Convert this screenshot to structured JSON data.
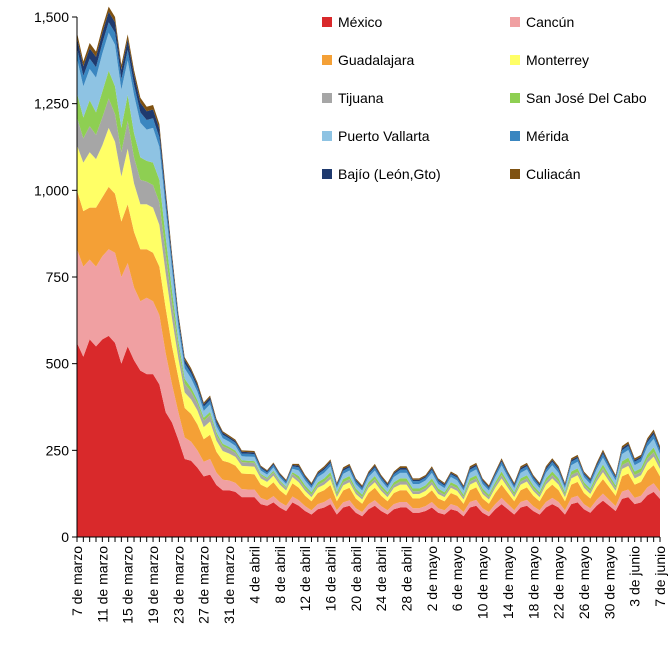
{
  "chart_data": {
    "type": "stacked_area",
    "categories": [
      "7 de marzo",
      null,
      null,
      null,
      "11 de marzo",
      null,
      null,
      null,
      "15 de marzo",
      null,
      null,
      null,
      "19 de marzo",
      null,
      null,
      null,
      "23 de marzo",
      null,
      null,
      null,
      "27 de marzo",
      null,
      null,
      null,
      "31 de marzo",
      null,
      null,
      null,
      "4 de abril",
      null,
      null,
      null,
      "8 de abril",
      null,
      null,
      null,
      "12 de abril",
      null,
      null,
      null,
      "16 de abril",
      null,
      null,
      null,
      "20 de abril",
      null,
      null,
      null,
      "24 de abril",
      null,
      null,
      null,
      "28 de abril",
      null,
      null,
      null,
      "2 de mayo",
      null,
      null,
      null,
      "6 de mayo",
      null,
      null,
      null,
      "10 de mayo",
      null,
      null,
      null,
      "14 de mayo",
      null,
      null,
      null,
      "18 de mayo",
      null,
      null,
      null,
      "22 de mayo",
      null,
      null,
      null,
      "26 de mayo",
      null,
      null,
      null,
      "30 de mayo",
      null,
      null,
      null,
      "3 de junio",
      null,
      null,
      null,
      "7 de junio"
    ],
    "ylim": [
      0,
      1500
    ],
    "yticks": [
      0,
      250,
      500,
      750,
      {
        "value": 1000,
        "label": "1,000"
      },
      {
        "value": 1250,
        "label": "1,250"
      },
      {
        "value": 1500,
        "label": "1,500"
      }
    ],
    "legend": "top-right",
    "series": [
      {
        "name": "México",
        "color": "#d9292b",
        "values": [
          560,
          520,
          570,
          550,
          570,
          580,
          560,
          500,
          550,
          510,
          480,
          470,
          470,
          440,
          360,
          330,
          280,
          225,
          220,
          200,
          175,
          180,
          150,
          135,
          135,
          130,
          115,
          115,
          115,
          95,
          90,
          100,
          85,
          75,
          100,
          90,
          75,
          65,
          80,
          85,
          95,
          65,
          85,
          90,
          70,
          60,
          80,
          90,
          75,
          65,
          80,
          85,
          85,
          70,
          70,
          75,
          85,
          70,
          65,
          80,
          75,
          60,
          85,
          90,
          70,
          60,
          80,
          95,
          80,
          65,
          85,
          90,
          75,
          65,
          85,
          95,
          85,
          65,
          95,
          100,
          80,
          70,
          90,
          105,
          90,
          75,
          110,
          115,
          95,
          100,
          120,
          130,
          110
        ]
      },
      {
        "name": "Cancún",
        "color": "#f0a0a2",
        "values": [
          270,
          260,
          230,
          230,
          240,
          250,
          260,
          250,
          240,
          210,
          200,
          220,
          210,
          200,
          170,
          110,
          80,
          62,
          55,
          50,
          42,
          45,
          36,
          30,
          28,
          26,
          23,
          22,
          22,
          18,
          16,
          18,
          16,
          15,
          17,
          16,
          14,
          12,
          15,
          16,
          17,
          12,
          15,
          16,
          13,
          12,
          15,
          16,
          14,
          12,
          15,
          16,
          16,
          13,
          13,
          14,
          16,
          13,
          12,
          15,
          14,
          12,
          16,
          17,
          13,
          12,
          15,
          18,
          15,
          12,
          16,
          17,
          14,
          12,
          16,
          18,
          16,
          12,
          18,
          19,
          15,
          13,
          17,
          20,
          17,
          14,
          21,
          22,
          18,
          19,
          23,
          25,
          21
        ]
      },
      {
        "name": "Guadalajara",
        "color": "#f4a036",
        "values": [
          170,
          160,
          150,
          170,
          170,
          180,
          170,
          160,
          170,
          160,
          150,
          140,
          140,
          140,
          130,
          110,
          100,
          85,
          80,
          75,
          65,
          70,
          60,
          55,
          52,
          50,
          45,
          45,
          44,
          38,
          36,
          40,
          34,
          30,
          38,
          36,
          30,
          26,
          32,
          34,
          38,
          26,
          34,
          36,
          28,
          24,
          32,
          36,
          30,
          26,
          32,
          34,
          34,
          28,
          28,
          30,
          34,
          28,
          26,
          32,
          30,
          24,
          34,
          36,
          28,
          24,
          32,
          38,
          32,
          26,
          34,
          36,
          30,
          26,
          34,
          38,
          34,
          26,
          38,
          40,
          32,
          28,
          36,
          42,
          36,
          30,
          44,
          46,
          38,
          40,
          48,
          52,
          44
        ]
      },
      {
        "name": "Monterrey",
        "color": "#ffff66",
        "values": [
          130,
          140,
          160,
          140,
          150,
          170,
          150,
          130,
          160,
          140,
          130,
          130,
          130,
          120,
          100,
          80,
          55,
          45,
          42,
          40,
          35,
          38,
          32,
          28,
          26,
          25,
          22,
          22,
          22,
          18,
          17,
          19,
          16,
          14,
          18,
          16,
          14,
          12,
          15,
          16,
          17,
          12,
          15,
          16,
          13,
          12,
          15,
          16,
          14,
          12,
          15,
          16,
          16,
          13,
          13,
          14,
          16,
          13,
          12,
          15,
          14,
          12,
          16,
          17,
          13,
          12,
          15,
          18,
          15,
          12,
          16,
          17,
          14,
          12,
          16,
          18,
          16,
          12,
          18,
          19,
          15,
          13,
          17,
          20,
          17,
          14,
          21,
          22,
          18,
          19,
          23,
          25,
          21
        ]
      },
      {
        "name": "Tijuana",
        "color": "#a6a6a6",
        "values": [
          80,
          70,
          75,
          70,
          80,
          85,
          80,
          70,
          80,
          75,
          70,
          65,
          65,
          65,
          55,
          45,
          30,
          25,
          22,
          20,
          18,
          19,
          16,
          14,
          13,
          12,
          11,
          11,
          11,
          9,
          8,
          9,
          8,
          7,
          9,
          9,
          8,
          7,
          8,
          9,
          10,
          7,
          9,
          9,
          8,
          7,
          8,
          9,
          8,
          7,
          8,
          9,
          9,
          8,
          8,
          8,
          9,
          8,
          7,
          8,
          8,
          7,
          9,
          9,
          8,
          7,
          8,
          10,
          8,
          7,
          9,
          9,
          8,
          7,
          9,
          10,
          9,
          7,
          10,
          10,
          8,
          8,
          9,
          11,
          9,
          8,
          11,
          12,
          10,
          10,
          12,
          13,
          11
        ]
      },
      {
        "name": "San José Del Cabo",
        "color": "#8ecf52",
        "values": [
          70,
          60,
          75,
          65,
          75,
          80,
          80,
          70,
          75,
          70,
          65,
          60,
          65,
          65,
          50,
          35,
          20,
          14,
          12,
          10,
          9,
          9,
          8,
          7,
          6,
          6,
          5,
          5,
          5,
          4,
          4,
          5,
          4,
          4,
          5,
          9,
          8,
          7,
          8,
          9,
          10,
          7,
          9,
          9,
          8,
          7,
          8,
          9,
          8,
          7,
          8,
          9,
          9,
          8,
          8,
          8,
          9,
          8,
          7,
          8,
          8,
          7,
          9,
          9,
          8,
          7,
          8,
          10,
          8,
          7,
          9,
          9,
          8,
          7,
          9,
          10,
          9,
          7,
          10,
          10,
          8,
          8,
          9,
          11,
          9,
          8,
          11,
          12,
          10,
          10,
          12,
          13,
          11
        ]
      },
      {
        "name": "Puerto Vallarta",
        "color": "#8ec3e3",
        "values": [
          100,
          90,
          90,
          100,
          110,
          110,
          120,
          110,
          100,
          110,
          100,
          90,
          100,
          95,
          80,
          60,
          40,
          30,
          27,
          24,
          20,
          22,
          18,
          16,
          15,
          14,
          12,
          12,
          12,
          10,
          9,
          10,
          9,
          8,
          10,
          16,
          14,
          12,
          15,
          16,
          17,
          12,
          15,
          16,
          13,
          12,
          15,
          16,
          14,
          12,
          15,
          16,
          16,
          13,
          13,
          14,
          16,
          13,
          12,
          15,
          14,
          12,
          16,
          17,
          13,
          12,
          15,
          18,
          15,
          12,
          16,
          17,
          14,
          12,
          16,
          18,
          16,
          12,
          18,
          19,
          15,
          13,
          17,
          20,
          17,
          14,
          21,
          22,
          18,
          19,
          23,
          25,
          21
        ]
      },
      {
        "name": "Mérida",
        "color": "#3a86c0",
        "values": [
          30,
          30,
          30,
          30,
          30,
          30,
          35,
          30,
          30,
          30,
          30,
          28,
          28,
          28,
          25,
          22,
          20,
          15,
          14,
          13,
          12,
          12,
          10,
          10,
          9,
          9,
          8,
          8,
          8,
          7,
          6,
          7,
          6,
          6,
          7,
          9,
          8,
          7,
          8,
          9,
          10,
          7,
          9,
          9,
          8,
          7,
          8,
          9,
          8,
          7,
          8,
          9,
          9,
          8,
          8,
          8,
          9,
          8,
          7,
          8,
          8,
          7,
          9,
          9,
          8,
          7,
          8,
          10,
          8,
          7,
          9,
          9,
          8,
          7,
          9,
          10,
          9,
          7,
          10,
          10,
          8,
          8,
          9,
          11,
          9,
          8,
          11,
          12,
          10,
          10,
          12,
          13,
          11
        ]
      },
      {
        "name": "Bajío (León,Gto)",
        "color": "#1f3a6e",
        "values": [
          30,
          28,
          30,
          30,
          30,
          30,
          30,
          28,
          30,
          28,
          28,
          25,
          25,
          25,
          20,
          15,
          12,
          10,
          9,
          8,
          7,
          8,
          6,
          6,
          5,
          5,
          5,
          5,
          5,
          4,
          4,
          4,
          4,
          3,
          4,
          5,
          4,
          4,
          4,
          5,
          5,
          4,
          5,
          5,
          4,
          4,
          4,
          5,
          4,
          4,
          4,
          5,
          5,
          4,
          4,
          4,
          5,
          4,
          4,
          4,
          4,
          4,
          5,
          5,
          4,
          4,
          4,
          5,
          4,
          4,
          5,
          5,
          4,
          4,
          5,
          5,
          5,
          4,
          5,
          5,
          4,
          4,
          5,
          6,
          5,
          4,
          6,
          6,
          5,
          5,
          6,
          7,
          6
        ]
      },
      {
        "name": "Culiacán",
        "color": "#7f5212",
        "values": [
          15,
          14,
          15,
          15,
          15,
          15,
          15,
          14,
          15,
          14,
          14,
          13,
          13,
          13,
          12,
          10,
          8,
          7,
          6,
          6,
          5,
          5,
          5,
          4,
          4,
          4,
          4,
          4,
          4,
          3,
          3,
          3,
          3,
          3,
          3,
          5,
          4,
          4,
          4,
          5,
          5,
          4,
          5,
          5,
          4,
          4,
          4,
          5,
          4,
          4,
          4,
          5,
          5,
          4,
          4,
          4,
          5,
          4,
          4,
          4,
          4,
          4,
          5,
          5,
          4,
          4,
          4,
          5,
          4,
          4,
          5,
          5,
          4,
          4,
          5,
          5,
          5,
          4,
          5,
          5,
          4,
          4,
          5,
          6,
          5,
          4,
          6,
          6,
          5,
          5,
          6,
          7,
          6
        ]
      }
    ]
  }
}
